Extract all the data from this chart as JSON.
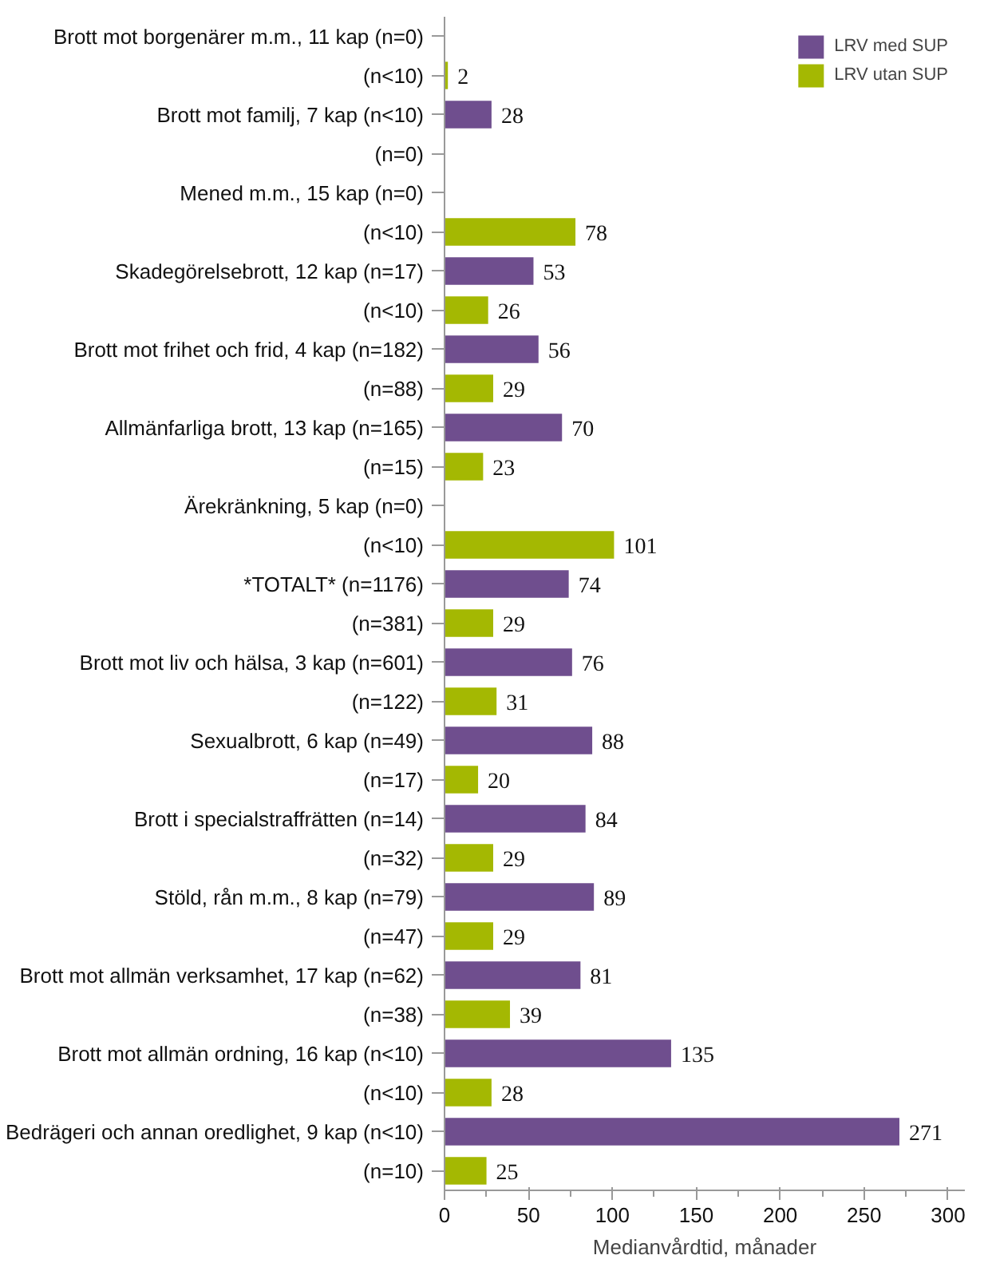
{
  "chart_data": {
    "type": "bar",
    "orientation": "horizontal",
    "xlabel": "Medianvårdtid, månader",
    "categories": [
      "Brott mot borgenärer m.m., 11 kap (n=0)",
      "(n<10)",
      "Brott mot familj, 7 kap (n<10)",
      "(n=0)",
      "Mened m.m., 15 kap (n=0)",
      "(n<10)",
      "Skadegörelsebrott, 12 kap (n=17)",
      "(n<10)",
      "Brott mot frihet och frid, 4 kap (n=182)",
      "(n=88)",
      "Allmänfarliga brott, 13 kap (n=165)",
      "(n=15)",
      "Ärekränkning, 5 kap (n=0)",
      "(n<10)",
      "*TOTALT* (n=1176)",
      "(n=381)",
      "Brott mot liv och hälsa, 3 kap (n=601)",
      "(n=122)",
      "Sexualbrott, 6 kap (n=49)",
      "(n=17)",
      "Brott i specialstraffrätten (n=14)",
      "(n=32)",
      "Stöld, rån m.m., 8 kap (n=79)",
      "(n=47)",
      "Brott mot allmän verksamhet, 17 kap (n=62)",
      "(n=38)",
      "Brott mot allmän ordning, 16 kap (n<10)",
      "(n<10)",
      "Bedrägeri och annan oredlighet, 9 kap (n<10)",
      "(n=10)"
    ],
    "series": [
      {
        "name": "LRV med SUP",
        "color": "#6f4e8e",
        "values": [
          null,
          null,
          28,
          null,
          null,
          null,
          53,
          null,
          56,
          null,
          70,
          null,
          null,
          null,
          74,
          null,
          76,
          null,
          88,
          null,
          84,
          null,
          89,
          null,
          81,
          null,
          135,
          null,
          271,
          null
        ]
      },
      {
        "name": "LRV utan SUP",
        "color": "#a4b802",
        "values": [
          null,
          2,
          null,
          null,
          null,
          78,
          null,
          26,
          null,
          29,
          null,
          23,
          null,
          101,
          null,
          29,
          null,
          31,
          null,
          20,
          null,
          29,
          null,
          29,
          null,
          39,
          null,
          28,
          null,
          25
        ]
      }
    ],
    "xlim": [
      0,
      310
    ],
    "xticks": [
      0,
      50,
      100,
      150,
      200,
      250,
      300
    ],
    "data_labels": true,
    "grid": false,
    "legend": "top right"
  }
}
